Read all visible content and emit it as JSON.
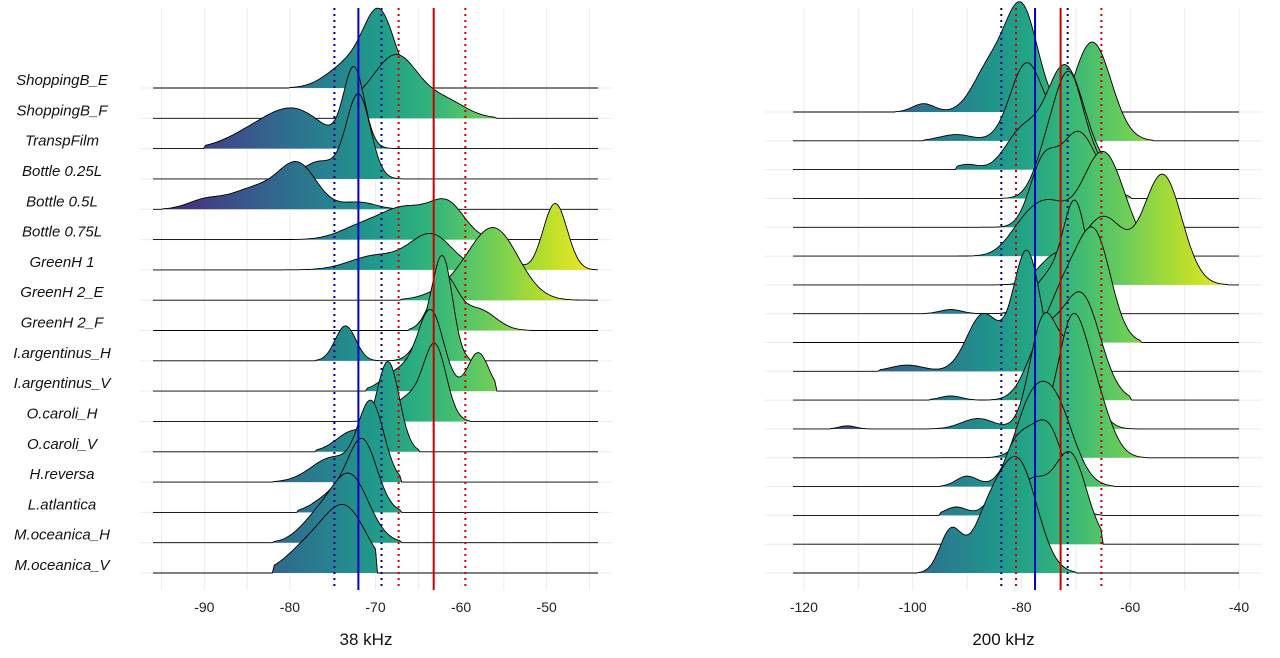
{
  "chart_data": [
    {
      "type": "ridgeline",
      "xlabel": "38 kHz",
      "xlim": [
        -96,
        -44
      ],
      "ticks": [
        -90,
        -80,
        -70,
        -60,
        -50
      ],
      "grid": true,
      "legend": "none",
      "color_scale": "viridis",
      "categories": [
        "ShoppingB_E",
        "ShoppingB_F",
        "TranspFilm",
        "Bottle 0.25L",
        "Bottle 0.5L",
        "Bottle 0.75L",
        "GreenH 1",
        "GreenH 2_E",
        "GreenH 2_F",
        "I.argentinus_H",
        "I.argentinus_V",
        "O.caroli_H",
        "O.caroli_V",
        "H.reversa",
        "L.atlantica",
        "M.oceanica_H",
        "M.oceanica_V"
      ],
      "ridges": [
        {
          "name": "ShoppingB_E",
          "peaks": [
            [
              -69.5,
              1.0,
              1.8
            ],
            [
              -73,
              0.35,
              2.5
            ]
          ],
          "range": [
            -80,
            -63
          ]
        },
        {
          "name": "ShoppingB_F",
          "peaks": [
            [
              -67.5,
              0.85,
              2.5
            ],
            [
              -62,
              0.25,
              2.5
            ],
            [
              -72,
              0.2,
              2.5
            ]
          ],
          "range": [
            -74,
            -56
          ]
        },
        {
          "name": "TranspFilm",
          "peaks": [
            [
              -72.5,
              1.1,
              1.2
            ],
            [
              -79.5,
              0.55,
              3.5
            ],
            [
              -85,
              0.15,
              3
            ]
          ],
          "range": [
            -90,
            -66
          ]
        },
        {
          "name": "Bottle 0.25L",
          "peaks": [
            [
              -72,
              1.2,
              1.4
            ],
            [
              -76.5,
              0.25,
              2
            ]
          ],
          "range": [
            -80,
            -66
          ]
        },
        {
          "name": "Bottle 0.5L",
          "peaks": [
            [
              -79,
              0.6,
              2.2
            ],
            [
              -84,
              0.3,
              3
            ],
            [
              -90,
              0.12,
              2
            ],
            [
              -72,
              0.1,
              2
            ]
          ],
          "range": [
            -95,
            -66
          ]
        },
        {
          "name": "Bottle 0.75L",
          "peaks": [
            [
              -61.5,
              0.45,
              2
            ],
            [
              -66.5,
              0.45,
              3
            ],
            [
              -72,
              0.15,
              2.5
            ]
          ],
          "range": [
            -82,
            -56
          ]
        },
        {
          "name": "GreenH 1",
          "peaks": [
            [
              -49,
              0.95,
              1.4
            ],
            [
              -63.5,
              0.5,
              2.5
            ],
            [
              -55,
              0.3,
              1.2
            ],
            [
              -70,
              0.2,
              3
            ]
          ],
          "range": [
            -85,
            -44
          ]
        },
        {
          "name": "GreenH 2_E",
          "peaks": [
            [
              -56,
              0.95,
              2.8
            ],
            [
              -60,
              0.2,
              3
            ]
          ],
          "range": [
            -67,
            -44
          ]
        },
        {
          "name": "GreenH 2_F",
          "peaks": [
            [
              -62,
              0.75,
              1.5
            ],
            [
              -58,
              0.3,
              2
            ]
          ],
          "range": [
            -66,
            -52
          ]
        },
        {
          "name": "I.argentinus_H",
          "peaks": [
            [
              -73.5,
              0.5,
              1.2
            ],
            [
              -62,
              1.15,
              1.1
            ],
            [
              -63.5,
              0.55,
              1.5
            ]
          ],
          "range": [
            -77,
            -59
          ]
        },
        {
          "name": "I.argentinus_V",
          "peaks": [
            [
              -63.5,
              1.1,
              1.5
            ],
            [
              -58,
              0.55,
              1.2
            ],
            [
              -67,
              0.3,
              2
            ]
          ],
          "range": [
            -71,
            -56
          ]
        },
        {
          "name": "O.caroli_H",
          "peaks": [
            [
              -63,
              1.0,
              1.3
            ],
            [
              -66,
              0.35,
              2
            ]
          ],
          "range": [
            -73,
            -59
          ]
        },
        {
          "name": "O.caroli_V",
          "peaks": [
            [
              -68.5,
              1.25,
              1.3
            ],
            [
              -72.5,
              0.3,
              2
            ]
          ],
          "range": [
            -77,
            -65
          ]
        },
        {
          "name": "H.reversa",
          "peaks": [
            [
              -70.5,
              1.1,
              1.5
            ],
            [
              -75,
              0.35,
              2.5
            ]
          ],
          "range": [
            -82,
            -67
          ]
        },
        {
          "name": "L.atlantica",
          "peaks": [
            [
              -71.5,
              1.0,
              1.7
            ],
            [
              -75,
              0.25,
              2
            ]
          ],
          "range": [
            -79,
            -67
          ]
        },
        {
          "name": "M.oceanica_H",
          "peaks": [
            [
              -73,
              0.95,
              2.2
            ],
            [
              -77,
              0.3,
              2
            ]
          ],
          "range": [
            -82,
            -67
          ]
        },
        {
          "name": "M.oceanica_V",
          "peaks": [
            [
              -73.5,
              0.9,
              2.5
            ],
            [
              -78,
              0.35,
              2.5
            ]
          ],
          "range": [
            -82,
            -70
          ]
        }
      ],
      "vlines": [
        {
          "x": -72,
          "color": "#0000cc",
          "style": "solid"
        },
        {
          "x": -63.2,
          "color": "#cc0000",
          "style": "solid"
        },
        {
          "x": -74.8,
          "color": "#00008b",
          "style": "dotted"
        },
        {
          "x": -69.3,
          "color": "#00008b",
          "style": "dotted"
        },
        {
          "x": -67.3,
          "color": "#cc0000",
          "style": "dotted"
        },
        {
          "x": -59.5,
          "color": "#cc0000",
          "style": "dotted"
        }
      ]
    },
    {
      "type": "ridgeline",
      "xlabel": "200 kHz",
      "xlim": [
        -122,
        -40
      ],
      "ticks": [
        -120,
        -100,
        -80,
        -60,
        -40
      ],
      "grid": true,
      "legend": "none",
      "color_scale": "viridis",
      "ridges": [
        {
          "peaks": [
            [
              -80,
              1.0,
              3
            ],
            [
              -86,
              0.4,
              3
            ],
            [
              -98,
              0.08,
              2
            ]
          ],
          "range": [
            -103,
            -73
          ]
        },
        {
          "peaks": [
            [
              -67,
              0.95,
              3.5
            ],
            [
              -79,
              0.75,
              3
            ],
            [
              -92,
              0.06,
              3
            ]
          ],
          "range": [
            -98,
            -56
          ]
        },
        {
          "peaks": [
            [
              -72,
              1.0,
              3.5
            ],
            [
              -80,
              0.35,
              3
            ],
            [
              -90,
              0.05,
              2
            ]
          ],
          "range": [
            -92,
            -63
          ]
        },
        {
          "peaks": [
            [
              -71,
              1.05,
              2.5
            ],
            [
              -75,
              0.45,
              2.5
            ],
            [
              -66,
              0.3,
              2.5
            ]
          ],
          "range": [
            -88,
            -60
          ]
        },
        {
          "peaks": [
            [
              -70,
              0.8,
              3
            ],
            [
              -76,
              0.6,
              2.5
            ],
            [
              -65,
              0.35,
              3
            ]
          ],
          "range": [
            -88,
            -60
          ]
        },
        {
          "peaks": [
            [
              -65,
              1.0,
              4
            ],
            [
              -75,
              0.45,
              3.5
            ],
            [
              -80,
              0.2,
              3
            ]
          ],
          "range": [
            -95,
            -57
          ]
        },
        {
          "peaks": [
            [
              -54,
              1.05,
              3.5
            ],
            [
              -65,
              0.65,
              4
            ],
            [
              -74,
              0.25,
              3
            ]
          ],
          "range": [
            -85,
            -42
          ]
        },
        {
          "peaks": [
            [
              -70,
              1.0,
              2.2
            ],
            [
              -75,
              0.35,
              3
            ],
            [
              -93,
              0.04,
              2
            ]
          ],
          "range": [
            -98,
            -62
          ]
        },
        {
          "peaks": [
            [
              -66.5,
              1.0,
              3
            ],
            [
              -72,
              0.5,
              3
            ]
          ],
          "range": [
            -78,
            -58
          ]
        },
        {
          "peaks": [
            [
              -79,
              1.15,
              2.5
            ],
            [
              -87,
              0.55,
              3
            ],
            [
              -101,
              0.06,
              3
            ]
          ],
          "range": [
            -106,
            -73
          ]
        },
        {
          "peaks": [
            [
              -69,
              1.0,
              3.5
            ],
            [
              -76,
              0.55,
              3
            ],
            [
              -93,
              0.04,
              2
            ]
          ],
          "range": [
            -97,
            -60
          ]
        },
        {
          "peaks": [
            [
              -76,
              1.0,
              2.5
            ],
            [
              -70,
              0.75,
              3
            ],
            [
              -88,
              0.1,
              3
            ],
            [
              -112,
              0.03,
              1.5
            ]
          ],
          "range": [
            -115,
            -58
          ]
        },
        {
          "peaks": [
            [
              -71,
              1.05,
              2.5
            ],
            [
              -67,
              0.65,
              3
            ],
            [
              -77,
              0.3,
              3
            ]
          ],
          "range": [
            -95,
            -57
          ]
        },
        {
          "peaks": [
            [
              -74,
              0.8,
              3.5
            ],
            [
              -79,
              0.55,
              3
            ],
            [
              -90,
              0.1,
              2
            ]
          ],
          "range": [
            -95,
            -63
          ]
        },
        {
          "peaks": [
            [
              -75,
              0.8,
              3
            ],
            [
              -81,
              0.65,
              3
            ],
            [
              -92,
              0.08,
              2
            ]
          ],
          "range": [
            -95,
            -65
          ]
        },
        {
          "peaks": [
            [
              -71,
              0.85,
              3
            ],
            [
              -78,
              0.55,
              3
            ],
            [
              -84,
              0.25,
              3
            ]
          ],
          "range": [
            -104,
            -65
          ]
        },
        {
          "peaks": [
            [
              -81,
              0.8,
              3
            ],
            [
              -86,
              0.55,
              3
            ],
            [
              -93,
              0.4,
              2
            ],
            [
              -78,
              0.3,
              3
            ]
          ],
          "range": [
            -99,
            -70
          ]
        }
      ],
      "vlines": [
        {
          "x": -77.5,
          "color": "#0000cc",
          "style": "solid"
        },
        {
          "x": -72.8,
          "color": "#cc0000",
          "style": "solid"
        },
        {
          "x": -83.7,
          "color": "#00008b",
          "style": "dotted"
        },
        {
          "x": -71.5,
          "color": "#00008b",
          "style": "dotted"
        },
        {
          "x": -81,
          "color": "#cc0000",
          "style": "dotted"
        },
        {
          "x": -65.3,
          "color": "#cc0000",
          "style": "dotted"
        }
      ]
    }
  ]
}
